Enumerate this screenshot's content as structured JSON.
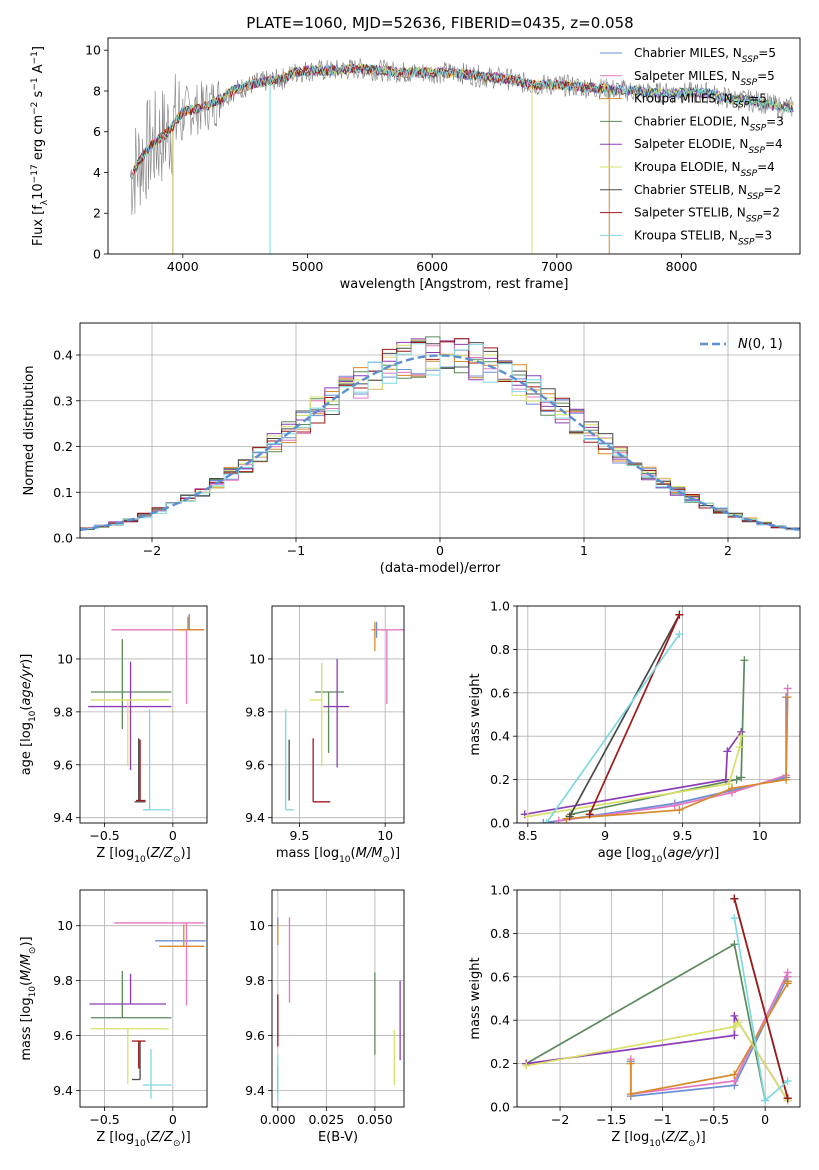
{
  "figure_title": "PLATE=1060, MJD=52636, FIBERID=0435, z=0.058",
  "colors": [
    "#6b8fd6",
    "#e377c2",
    "#d98a2b",
    "#5c8a5c",
    "#8e3db8",
    "#d8e06a",
    "#4a4a4a",
    "#a01818",
    "#7fd8e0"
  ],
  "chart_data": [
    {
      "id": "spectrum",
      "type": "line",
      "title": "PLATE=1060, MJD=52636, FIBERID=0435, z=0.058",
      "xlabel": "wavelength [Angstrom, rest frame]",
      "ylabel": "Flux [f_λ 10^-17 erg cm^-2 s^-1 A^-1]",
      "xlim": [
        3400,
        8950
      ],
      "ylim": [
        0,
        10.6
      ],
      "xticks": [
        4000,
        5000,
        6000,
        7000,
        8000
      ],
      "yticks": [
        0,
        2,
        4,
        6,
        8,
        10
      ],
      "grid": false,
      "legend_position": "right",
      "legend": [
        {
          "label": "Chabrier MILES, N",
          "sub": "SSP",
          "suffix": "=5"
        },
        {
          "label": "Salpeter MILES, N",
          "sub": "SSP",
          "suffix": "=5"
        },
        {
          "label": "Kroupa MILES, N",
          "sub": "SSP",
          "suffix": "=5"
        },
        {
          "label": "Chabrier ELODIE, N",
          "sub": "SSP",
          "suffix": "=3"
        },
        {
          "label": "Salpeter ELODIE, N",
          "sub": "SSP",
          "suffix": "=4"
        },
        {
          "label": "Kroupa ELODIE, N",
          "sub": "SSP",
          "suffix": "=4"
        },
        {
          "label": "Chabrier STELIB, N",
          "sub": "SSP",
          "suffix": "=2"
        },
        {
          "label": "Salpeter STELIB, N",
          "sub": "SSP",
          "suffix": "=2"
        },
        {
          "label": "Kroupa STELIB, N",
          "sub": "SSP",
          "suffix": "=3"
        }
      ],
      "continuum_wavelengths": [
        3600,
        3700,
        3800,
        3900,
        4000,
        4100,
        4200,
        4300,
        4400,
        4500,
        4600,
        4700,
        4800,
        4900,
        5000,
        5200,
        5400,
        5600,
        5800,
        6000,
        6200,
        6400,
        6600,
        6800,
        7000,
        7200,
        7400,
        7600,
        7800,
        8000,
        8200,
        8400,
        8600,
        8800
      ],
      "continuum_flux": [
        4.0,
        5.0,
        5.6,
        6.1,
        7.0,
        7.1,
        7.3,
        7.6,
        8.0,
        8.2,
        8.4,
        8.5,
        8.6,
        8.9,
        9.0,
        9.0,
        9.1,
        9.0,
        8.9,
        8.9,
        8.9,
        8.7,
        8.6,
        8.3,
        8.3,
        8.2,
        8.1,
        8.0,
        7.9,
        7.9,
        7.9,
        7.6,
        7.5,
        7.2
      ]
    },
    {
      "id": "residuals",
      "type": "histogram",
      "xlabel": "(data-model)/error",
      "ylabel": "Normed distribution",
      "xlim": [
        -2.5,
        2.5
      ],
      "ylim": [
        0,
        0.47
      ],
      "xticks": [
        -2,
        -1,
        0,
        1,
        2
      ],
      "yticks": [
        0.0,
        0.1,
        0.2,
        0.3,
        0.4
      ],
      "grid": true,
      "legend": [
        {
          "label": "N(0,1)"
        }
      ],
      "legend_position": "top-right"
    },
    {
      "id": "age-vs-Z",
      "type": "errorbar",
      "xlabel": "Z [log10(Z/Z☉)]",
      "ylabel": "age  [log10(age/yr)]",
      "xlim": [
        -0.68,
        0.25
      ],
      "ylim": [
        9.38,
        10.2
      ],
      "xticks": [
        -0.5,
        0.0
      ],
      "yticks": [
        9.4,
        9.6,
        9.8,
        10.0
      ],
      "grid": true,
      "points": [
        {
          "x": 0.12,
          "y": 10.11,
          "xerr": [
            0.07,
            0.08
          ],
          "yerr": [
            0.0,
            0.06
          ]
        },
        {
          "x": 0.1,
          "y": 10.11,
          "xerr": [
            0.55,
            0.13
          ],
          "yerr": [
            0.28,
            0.0
          ]
        },
        {
          "x": 0.11,
          "y": 10.11,
          "xerr": [
            0.08,
            0.12
          ],
          "yerr": [
            0.0,
            0.05
          ]
        },
        {
          "x": -0.37,
          "y": 9.875,
          "xerr": [
            0.23,
            0.36
          ],
          "yerr": [
            0.14,
            0.2
          ]
        },
        {
          "x": -0.31,
          "y": 9.82,
          "xerr": [
            0.31,
            0.3
          ],
          "yerr": [
            0.24,
            0.17
          ]
        },
        {
          "x": -0.33,
          "y": 9.845,
          "xerr": [
            0.27,
            0.3
          ],
          "yerr": [
            0.25,
            0.0
          ]
        },
        {
          "x": -0.25,
          "y": 9.46,
          "xerr": [
            0.03,
            0.05
          ],
          "yerr": [
            0.0,
            0.24
          ]
        },
        {
          "x": -0.24,
          "y": 9.465,
          "xerr": [
            0.03,
            0.04
          ],
          "yerr": [
            0.0,
            0.23
          ]
        },
        {
          "x": -0.17,
          "y": 9.43,
          "xerr": [
            0.05,
            0.15
          ],
          "yerr": [
            0.0,
            0.38
          ]
        }
      ]
    },
    {
      "id": "age-vs-mass",
      "type": "errorbar",
      "xlabel": "mass [log10(M/M☉)]",
      "ylabel": "",
      "xlim": [
        9.34,
        10.11
      ],
      "ylim": [
        9.38,
        10.2
      ],
      "xticks": [
        9.5,
        10.0
      ],
      "yticks": [
        9.4,
        9.6,
        9.8,
        10.0
      ],
      "grid": true,
      "points": [
        {
          "x": 9.95,
          "y": 10.11,
          "xerr": [
            0.02,
            0.0
          ],
          "yerr": [
            0.03,
            0.03
          ]
        },
        {
          "x": 10.01,
          "y": 10.11,
          "xerr": [
            0.08,
            0.1
          ],
          "yerr": [
            0.28,
            0.0
          ]
        },
        {
          "x": 9.94,
          "y": 10.11,
          "xerr": [
            0.02,
            0.0
          ],
          "yerr": [
            0.08,
            0.03
          ]
        },
        {
          "x": 9.67,
          "y": 9.875,
          "xerr": [
            0.08,
            0.09
          ],
          "yerr": [
            0.23,
            0.0
          ]
        },
        {
          "x": 9.72,
          "y": 9.82,
          "xerr": [
            0.08,
            0.07
          ],
          "yerr": [
            0.23,
            0.18
          ]
        },
        {
          "x": 9.63,
          "y": 9.845,
          "xerr": [
            0.07,
            0.0
          ],
          "yerr": [
            0.25,
            0.14
          ]
        },
        {
          "x": 9.44,
          "y": 9.465,
          "xerr": [
            0.0,
            0.0
          ],
          "yerr": [
            0.0,
            0.23
          ]
        },
        {
          "x": 9.58,
          "y": 9.46,
          "xerr": [
            0.0,
            0.1
          ],
          "yerr": [
            0.0,
            0.24
          ]
        },
        {
          "x": 9.42,
          "y": 9.43,
          "xerr": [
            0.0,
            0.05
          ],
          "yerr": [
            0.0,
            0.38
          ]
        }
      ]
    },
    {
      "id": "massweight-vs-age",
      "type": "line",
      "xlabel": "age  [log10(age/yr)]",
      "ylabel": "mass weight",
      "xlim": [
        8.43,
        10.26
      ],
      "ylim": [
        0.0,
        1.0
      ],
      "xticks": [
        8.5,
        9.0,
        9.5,
        10.0
      ],
      "yticks": [
        0.0,
        0.2,
        0.4,
        0.6,
        0.8,
        1.0
      ],
      "grid": true,
      "series": [
        {
          "x": [
            8.6,
            9.45,
            9.82,
            10.17,
            10.17
          ],
          "y": [
            0.0,
            0.09,
            0.15,
            0.21,
            0.58
          ]
        },
        {
          "x": [
            8.7,
            9.45,
            9.82,
            10.17,
            10.18
          ],
          "y": [
            0.01,
            0.08,
            0.14,
            0.22,
            0.62
          ]
        },
        {
          "x": [
            8.75,
            9.48,
            9.82,
            10.17,
            10.18
          ],
          "y": [
            0.02,
            0.06,
            0.16,
            0.2,
            0.58
          ]
        },
        {
          "x": [
            8.78,
            9.85,
            9.88,
            9.9
          ],
          "y": [
            0.04,
            0.2,
            0.21,
            0.75
          ]
        },
        {
          "x": [
            8.48,
            9.78,
            9.79,
            9.88
          ],
          "y": [
            0.04,
            0.2,
            0.33,
            0.42
          ]
        },
        {
          "x": [
            8.5,
            9.8,
            9.87,
            9.88
          ],
          "y": [
            0.03,
            0.18,
            0.35,
            0.4
          ]
        },
        {
          "x": [
            8.77,
            9.48
          ],
          "y": [
            0.03,
            0.96
          ]
        },
        {
          "x": [
            8.9,
            9.48
          ],
          "y": [
            0.04,
            0.96
          ]
        },
        {
          "x": [
            8.62,
            9.48
          ],
          "y": [
            0.0,
            0.87
          ]
        }
      ]
    },
    {
      "id": "mass-vs-Z",
      "type": "errorbar",
      "xlabel": "Z [log10(Z/Z☉)]",
      "ylabel": "mass [log10(M/M☉)]",
      "xlim": [
        -0.68,
        0.25
      ],
      "ylim": [
        9.34,
        10.13
      ],
      "xticks": [
        -0.5,
        0.0
      ],
      "yticks": [
        9.4,
        9.6,
        9.8,
        10.0
      ],
      "grid": true,
      "points": [
        {
          "x": 0.07,
          "y": 9.945,
          "xerr": [
            0.2,
            0.17
          ],
          "yerr": [
            0.0,
            0.0
          ]
        },
        {
          "x": 0.1,
          "y": 10.01,
          "xerr": [
            0.53,
            0.13
          ],
          "yerr": [
            0.3,
            0.0
          ]
        },
        {
          "x": 0.08,
          "y": 9.925,
          "xerr": [
            0.18,
            0.15
          ],
          "yerr": [
            0.0,
            0.08
          ]
        },
        {
          "x": -0.37,
          "y": 9.665,
          "xerr": [
            0.23,
            0.36
          ],
          "yerr": [
            0.0,
            0.17
          ]
        },
        {
          "x": -0.31,
          "y": 9.715,
          "xerr": [
            0.3,
            0.26
          ],
          "yerr": [
            0.0,
            0.11
          ]
        },
        {
          "x": -0.33,
          "y": 9.625,
          "xerr": [
            0.27,
            0.3
          ],
          "yerr": [
            0.2,
            0.0
          ]
        },
        {
          "x": -0.24,
          "y": 9.44,
          "xerr": [
            0.06,
            0.0
          ],
          "yerr": [
            0.0,
            0.14
          ]
        },
        {
          "x": -0.25,
          "y": 9.58,
          "xerr": [
            0.05,
            0.05
          ],
          "yerr": [
            0.1,
            0.0
          ]
        },
        {
          "x": -0.16,
          "y": 9.42,
          "xerr": [
            0.06,
            0.15
          ],
          "yerr": [
            0.05,
            0.13
          ]
        }
      ]
    },
    {
      "id": "mass-vs-ebv",
      "type": "errorbar",
      "xlabel": "E(B-V)",
      "ylabel": "",
      "xlim": [
        -0.003,
        0.065
      ],
      "ylim": [
        9.34,
        10.13
      ],
      "xticks": [
        0.0,
        0.025,
        0.05
      ],
      "xticklabels": [
        "0.000",
        "0.025",
        "0.050"
      ],
      "yticks": [
        9.4,
        9.6,
        9.8,
        10.0
      ],
      "grid": true,
      "points": [
        {
          "x": 0.0,
          "y": 10.0,
          "yerr": [
            0.0,
            0.03
          ]
        },
        {
          "x": 0.006,
          "y": 10.0,
          "yerr": [
            0.28,
            0.03
          ]
        },
        {
          "x": 0.0,
          "y": 9.93,
          "yerr": [
            0.0,
            0.08
          ]
        },
        {
          "x": 0.05,
          "y": 9.66,
          "yerr": [
            0.13,
            0.17
          ]
        },
        {
          "x": 0.063,
          "y": 9.66,
          "yerr": [
            0.15,
            0.14
          ]
        },
        {
          "x": 0.06,
          "y": 9.62,
          "yerr": [
            0.2,
            0.0
          ]
        },
        {
          "x": 0.0,
          "y": 9.44,
          "yerr": [
            0.05,
            0.05
          ]
        },
        {
          "x": 0.0,
          "y": 9.65,
          "yerr": [
            0.09,
            0.1
          ]
        },
        {
          "x": 0.0,
          "y": 9.42,
          "yerr": [
            0.06,
            0.11
          ]
        }
      ]
    },
    {
      "id": "massweight-vs-Z",
      "type": "line",
      "xlabel": "Z [log10(Z/Z☉)]",
      "ylabel": "mass weight",
      "xlim": [
        -2.42,
        0.34
      ],
      "ylim": [
        0.0,
        1.0
      ],
      "xticks": [
        -2.0,
        -1.5,
        -1.0,
        -0.5,
        0.0
      ],
      "yticks": [
        0.0,
        0.2,
        0.4,
        0.6,
        0.8,
        1.0
      ],
      "grid": true,
      "series": [
        {
          "x": [
            -1.31,
            -1.31,
            -0.3,
            0.22,
            0.22
          ],
          "y": [
            0.21,
            0.05,
            0.1,
            0.6,
            0.58
          ]
        },
        {
          "x": [
            -1.31,
            -1.31,
            -0.3,
            0.22,
            0.22
          ],
          "y": [
            0.22,
            0.06,
            0.12,
            0.62,
            0.6
          ]
        },
        {
          "x": [
            -1.31,
            -1.31,
            -0.3,
            0.22,
            0.22
          ],
          "y": [
            0.2,
            0.06,
            0.15,
            0.57,
            0.58
          ]
        },
        {
          "x": [
            -2.33,
            -0.3,
            0.0
          ],
          "y": [
            0.2,
            0.75,
            0.03
          ]
        },
        {
          "x": [
            -2.33,
            -0.3,
            -0.3,
            0.22
          ],
          "y": [
            0.2,
            0.33,
            0.42,
            0.03
          ]
        },
        {
          "x": [
            -2.33,
            -0.3,
            -0.26,
            0.22
          ],
          "y": [
            0.19,
            0.37,
            0.39,
            0.03
          ]
        },
        {
          "x": [
            -0.3,
            0.22
          ],
          "y": [
            0.96,
            0.04
          ]
        },
        {
          "x": [
            -0.3,
            0.22
          ],
          "y": [
            0.96,
            0.04
          ]
        },
        {
          "x": [
            -0.3,
            0.0,
            0.22
          ],
          "y": [
            0.87,
            0.03,
            0.12
          ]
        }
      ]
    }
  ]
}
